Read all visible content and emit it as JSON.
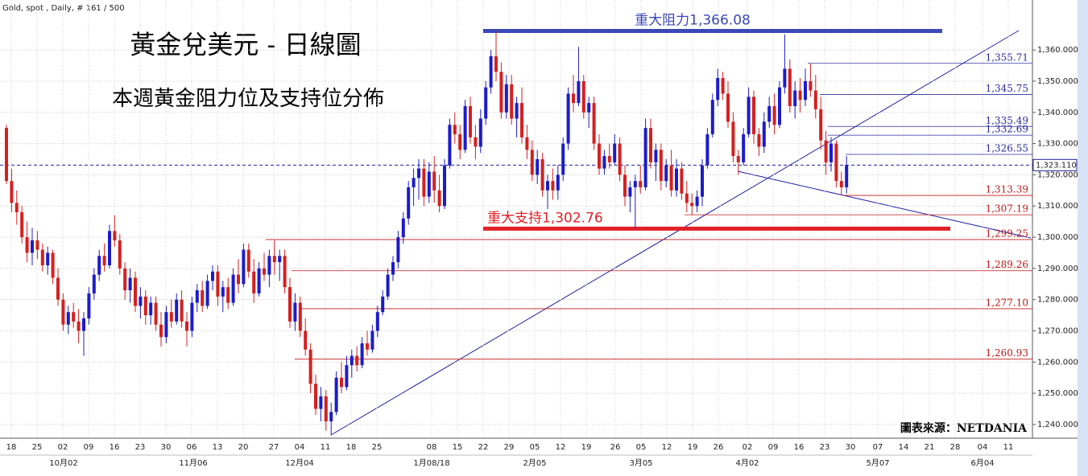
{
  "chart_data": {
    "type": "candlestick",
    "header": "Gold, spot , Daily, # 161 / 500",
    "title": "黃金兌美元 - 日線圖",
    "subtitle": "本週黃金阻力位及支持位分佈",
    "source": "圖表來源：NETDANIA",
    "up_color": "#1c1cc8",
    "down_color": "#d42020",
    "ylim": [
      1235.6,
      1372.4
    ],
    "yticks": [
      {
        "value": 1240,
        "label": "1,240.000"
      },
      {
        "value": 1250,
        "label": "1,250.000"
      },
      {
        "value": 1260,
        "label": "1,260.000"
      },
      {
        "value": 1270,
        "label": "1,270.000"
      },
      {
        "value": 1280,
        "label": "1,280.000"
      },
      {
        "value": 1290,
        "label": "1,290.000"
      },
      {
        "value": 1300,
        "label": "1,300.000"
      },
      {
        "value": 1310,
        "label": "1,310.000"
      },
      {
        "value": 1320,
        "label": "1,320.000"
      },
      {
        "value": 1330,
        "label": "1,330.000"
      },
      {
        "value": 1340,
        "label": "1,340.000"
      },
      {
        "value": 1350,
        "label": "1,350.000"
      },
      {
        "value": 1360,
        "label": "1,360.000"
      }
    ],
    "grid": true,
    "x_day_labels": [
      "18",
      "25",
      "02",
      "09",
      "16",
      "23",
      "30",
      "06",
      "13",
      "20",
      "27",
      "04",
      "11",
      "18",
      "25",
      "08",
      "15",
      "22",
      "29",
      "05",
      "12",
      "19",
      "26",
      "05",
      "12",
      "19",
      "26",
      "02",
      "09",
      "16",
      "23",
      "30",
      "07",
      "14",
      "21",
      "28",
      "04",
      "11"
    ],
    "x_month_labels": [
      "10月02",
      "11月06",
      "12月04",
      "1月08/18",
      "2月05",
      "3月05",
      "4月02",
      "5月07",
      "6月04"
    ],
    "last_price": {
      "value": 1323.11,
      "label": "1,323.110"
    },
    "resistance": {
      "value": 1366.08,
      "label": "重大阻力1,366.08",
      "color": "#3a48b8"
    },
    "support": {
      "value": 1302.76,
      "label": "重大支持1,302.76",
      "color": "#e02028"
    },
    "levels": [
      {
        "value": 1355.71,
        "label": "1,355.71",
        "color": "#2a2aa0"
      },
      {
        "value": 1345.75,
        "label": "1,345.75",
        "color": "#2a2aa0"
      },
      {
        "value": 1335.49,
        "label": "1,335.49",
        "color": "#2a2aa0"
      },
      {
        "value": 1332.69,
        "label": "1,332.69",
        "color": "#2a2aa0"
      },
      {
        "value": 1326.55,
        "label": "1,326.55",
        "color": "#2a2aa0"
      },
      {
        "value": 1313.39,
        "label": "1,313.39",
        "color": "#c01818"
      },
      {
        "value": 1307.19,
        "label": "1,307.19",
        "color": "#c01818"
      },
      {
        "value": 1299.25,
        "label": "1,299.25",
        "color": "#c01818"
      },
      {
        "value": 1289.26,
        "label": "1,289.26",
        "color": "#c01818"
      },
      {
        "value": 1277.1,
        "label": "1,277.10",
        "color": "#c01818"
      },
      {
        "value": 1260.93,
        "label": "1,260.93",
        "color": "#c01818"
      }
    ],
    "ohlc": [
      [
        1335,
        1336,
        1317,
        1318
      ],
      [
        1318,
        1322,
        1308,
        1311
      ],
      [
        1311,
        1315,
        1304,
        1308
      ],
      [
        1308,
        1310,
        1298,
        1300
      ],
      [
        1300,
        1305,
        1292,
        1295
      ],
      [
        1295,
        1303,
        1291,
        1299
      ],
      [
        1299,
        1302,
        1293,
        1296
      ],
      [
        1296,
        1298,
        1289,
        1291
      ],
      [
        1291,
        1297,
        1288,
        1295
      ],
      [
        1295,
        1296,
        1285,
        1287
      ],
      [
        1287,
        1290,
        1278,
        1280
      ],
      [
        1280,
        1282,
        1270,
        1272
      ],
      [
        1272,
        1278,
        1269,
        1276
      ],
      [
        1276,
        1279,
        1271,
        1273
      ],
      [
        1273,
        1277,
        1266,
        1270
      ],
      [
        1270,
        1276,
        1262,
        1274
      ],
      [
        1274,
        1284,
        1272,
        1282
      ],
      [
        1282,
        1290,
        1280,
        1288
      ],
      [
        1288,
        1296,
        1286,
        1294
      ],
      [
        1294,
        1298,
        1289,
        1291
      ],
      [
        1291,
        1304,
        1290,
        1302
      ],
      [
        1302,
        1307,
        1297,
        1299
      ],
      [
        1299,
        1301,
        1288,
        1290
      ],
      [
        1290,
        1292,
        1280,
        1283
      ],
      [
        1283,
        1290,
        1279,
        1287
      ],
      [
        1287,
        1289,
        1276,
        1278
      ],
      [
        1278,
        1284,
        1274,
        1281
      ],
      [
        1281,
        1283,
        1272,
        1275
      ],
      [
        1275,
        1281,
        1272,
        1279
      ],
      [
        1279,
        1281,
        1270,
        1272
      ],
      [
        1272,
        1276,
        1265,
        1268
      ],
      [
        1268,
        1278,
        1266,
        1276
      ],
      [
        1276,
        1280,
        1271,
        1273
      ],
      [
        1273,
        1282,
        1272,
        1280
      ],
      [
        1280,
        1283,
        1271,
        1273
      ],
      [
        1273,
        1276,
        1265,
        1270
      ],
      [
        1270,
        1281,
        1268,
        1279
      ],
      [
        1279,
        1285,
        1276,
        1283
      ],
      [
        1283,
        1286,
        1276,
        1278
      ],
      [
        1278,
        1288,
        1277,
        1286
      ],
      [
        1286,
        1291,
        1283,
        1289
      ],
      [
        1289,
        1291,
        1278,
        1281
      ],
      [
        1281,
        1286,
        1276,
        1284
      ],
      [
        1284,
        1287,
        1277,
        1279
      ],
      [
        1279,
        1290,
        1278,
        1288
      ],
      [
        1288,
        1293,
        1282,
        1285
      ],
      [
        1285,
        1298,
        1284,
        1296
      ],
      [
        1296,
        1298,
        1287,
        1289
      ],
      [
        1289,
        1293,
        1279,
        1282
      ],
      [
        1282,
        1292,
        1281,
        1290
      ],
      [
        1290,
        1295,
        1286,
        1288
      ],
      [
        1288,
        1296,
        1284,
        1294
      ],
      [
        1294,
        1299,
        1288,
        1292
      ],
      [
        1292,
        1296,
        1286,
        1294
      ],
      [
        1294,
        1296,
        1282,
        1284
      ],
      [
        1284,
        1287,
        1271,
        1273
      ],
      [
        1273,
        1282,
        1270,
        1279
      ],
      [
        1279,
        1281,
        1268,
        1270
      ],
      [
        1270,
        1274,
        1262,
        1264
      ],
      [
        1264,
        1266,
        1250,
        1253
      ],
      [
        1253,
        1256,
        1243,
        1245
      ],
      [
        1245,
        1252,
        1241,
        1249
      ],
      [
        1249,
        1251,
        1238,
        1241
      ],
      [
        1241,
        1247,
        1236.5,
        1244
      ],
      [
        1244,
        1257,
        1243,
        1255
      ],
      [
        1255,
        1260,
        1250,
        1252
      ],
      [
        1252,
        1262,
        1251,
        1259
      ],
      [
        1259,
        1264,
        1255,
        1262
      ],
      [
        1262,
        1265,
        1257,
        1259
      ],
      [
        1259,
        1268,
        1258,
        1266
      ],
      [
        1266,
        1270,
        1262,
        1264
      ],
      [
        1264,
        1272,
        1263,
        1270
      ],
      [
        1270,
        1278,
        1268,
        1276
      ],
      [
        1276,
        1283,
        1275,
        1281
      ],
      [
        1281,
        1290,
        1280,
        1288
      ],
      [
        1288,
        1294,
        1286,
        1292
      ],
      [
        1292,
        1302,
        1290,
        1300
      ],
      [
        1300,
        1308,
        1298,
        1306
      ],
      [
        1306,
        1318,
        1304,
        1316
      ],
      [
        1316,
        1322,
        1310,
        1319
      ],
      [
        1319,
        1325,
        1312,
        1322
      ],
      [
        1322,
        1325,
        1310,
        1313
      ],
      [
        1313,
        1324,
        1311,
        1321
      ],
      [
        1321,
        1326,
        1311,
        1315
      ],
      [
        1315,
        1320,
        1308,
        1310
      ],
      [
        1310,
        1325,
        1309,
        1323
      ],
      [
        1323,
        1338,
        1322,
        1336
      ],
      [
        1336,
        1340,
        1330,
        1333
      ],
      [
        1333,
        1336,
        1325,
        1328
      ],
      [
        1328,
        1344,
        1327,
        1342
      ],
      [
        1342,
        1345,
        1330,
        1332
      ],
      [
        1332,
        1336,
        1325,
        1329
      ],
      [
        1329,
        1341,
        1327,
        1338
      ],
      [
        1338,
        1350,
        1336,
        1348
      ],
      [
        1348,
        1360,
        1346,
        1358
      ],
      [
        1358,
        1366,
        1350,
        1353
      ],
      [
        1353,
        1356,
        1338,
        1340
      ],
      [
        1340,
        1352,
        1338,
        1349
      ],
      [
        1349,
        1352,
        1336,
        1338
      ],
      [
        1338,
        1345,
        1332,
        1343
      ],
      [
        1343,
        1348,
        1330,
        1332
      ],
      [
        1332,
        1336,
        1325,
        1328
      ],
      [
        1328,
        1331,
        1318,
        1320
      ],
      [
        1320,
        1328,
        1317,
        1325
      ],
      [
        1325,
        1327,
        1313,
        1315
      ],
      [
        1315,
        1320,
        1309,
        1318
      ],
      [
        1318,
        1322,
        1312,
        1315
      ],
      [
        1315,
        1323,
        1312,
        1320
      ],
      [
        1320,
        1332,
        1318,
        1330
      ],
      [
        1330,
        1348,
        1328,
        1346
      ],
      [
        1346,
        1352,
        1340,
        1343
      ],
      [
        1343,
        1361,
        1342,
        1350
      ],
      [
        1350,
        1352,
        1338,
        1340
      ],
      [
        1340,
        1345,
        1335,
        1343
      ],
      [
        1343,
        1345,
        1328,
        1330
      ],
      [
        1330,
        1333,
        1320,
        1322
      ],
      [
        1322,
        1328,
        1320,
        1326
      ],
      [
        1326,
        1330,
        1322,
        1324
      ],
      [
        1324,
        1333,
        1323,
        1330
      ],
      [
        1330,
        1332,
        1318,
        1320
      ],
      [
        1320,
        1323,
        1310,
        1313
      ],
      [
        1313,
        1318,
        1308,
        1316
      ],
      [
        1316,
        1320,
        1302.76,
        1318
      ],
      [
        1318,
        1323,
        1314,
        1316
      ],
      [
        1316,
        1338,
        1315,
        1335
      ],
      [
        1335,
        1338,
        1322,
        1324
      ],
      [
        1324,
        1330,
        1318,
        1328
      ],
      [
        1328,
        1330,
        1315,
        1318
      ],
      [
        1318,
        1325,
        1316,
        1323
      ],
      [
        1323,
        1328,
        1313,
        1315
      ],
      [
        1315,
        1325,
        1313,
        1322
      ],
      [
        1322,
        1324,
        1312,
        1314
      ],
      [
        1314,
        1318,
        1308,
        1311
      ],
      [
        1311,
        1314,
        1307.19,
        1310
      ],
      [
        1310,
        1315,
        1308,
        1313
      ],
      [
        1313,
        1325,
        1310,
        1323
      ],
      [
        1323,
        1335,
        1322,
        1333
      ],
      [
        1333,
        1346,
        1332,
        1344
      ],
      [
        1344,
        1354,
        1342,
        1351
      ],
      [
        1351,
        1353,
        1344,
        1346
      ],
      [
        1346,
        1350,
        1335,
        1337
      ],
      [
        1337,
        1340,
        1324,
        1326
      ],
      [
        1326,
        1328,
        1320,
        1324
      ],
      [
        1324,
        1335,
        1323,
        1333
      ],
      [
        1333,
        1348,
        1332,
        1345
      ],
      [
        1345,
        1347,
        1330,
        1333
      ],
      [
        1333,
        1335,
        1326,
        1329
      ],
      [
        1329,
        1340,
        1327,
        1337
      ],
      [
        1337,
        1345,
        1335,
        1342
      ],
      [
        1342,
        1346,
        1333,
        1336
      ],
      [
        1336,
        1350,
        1335,
        1348
      ],
      [
        1348,
        1365,
        1346,
        1354
      ],
      [
        1354,
        1357,
        1340,
        1342
      ],
      [
        1342,
        1350,
        1338,
        1347
      ],
      [
        1347,
        1351,
        1340,
        1344
      ],
      [
        1344,
        1354,
        1342,
        1350
      ],
      [
        1350,
        1355.71,
        1345,
        1347
      ],
      [
        1347,
        1352,
        1338,
        1341
      ],
      [
        1341,
        1345,
        1328,
        1331
      ],
      [
        1331,
        1334,
        1320,
        1324
      ],
      [
        1324,
        1332,
        1321,
        1330
      ],
      [
        1330,
        1331,
        1316,
        1318
      ],
      [
        1318,
        1321,
        1313.39,
        1316
      ],
      [
        1316,
        1326,
        1314,
        1323.11
      ]
    ]
  }
}
